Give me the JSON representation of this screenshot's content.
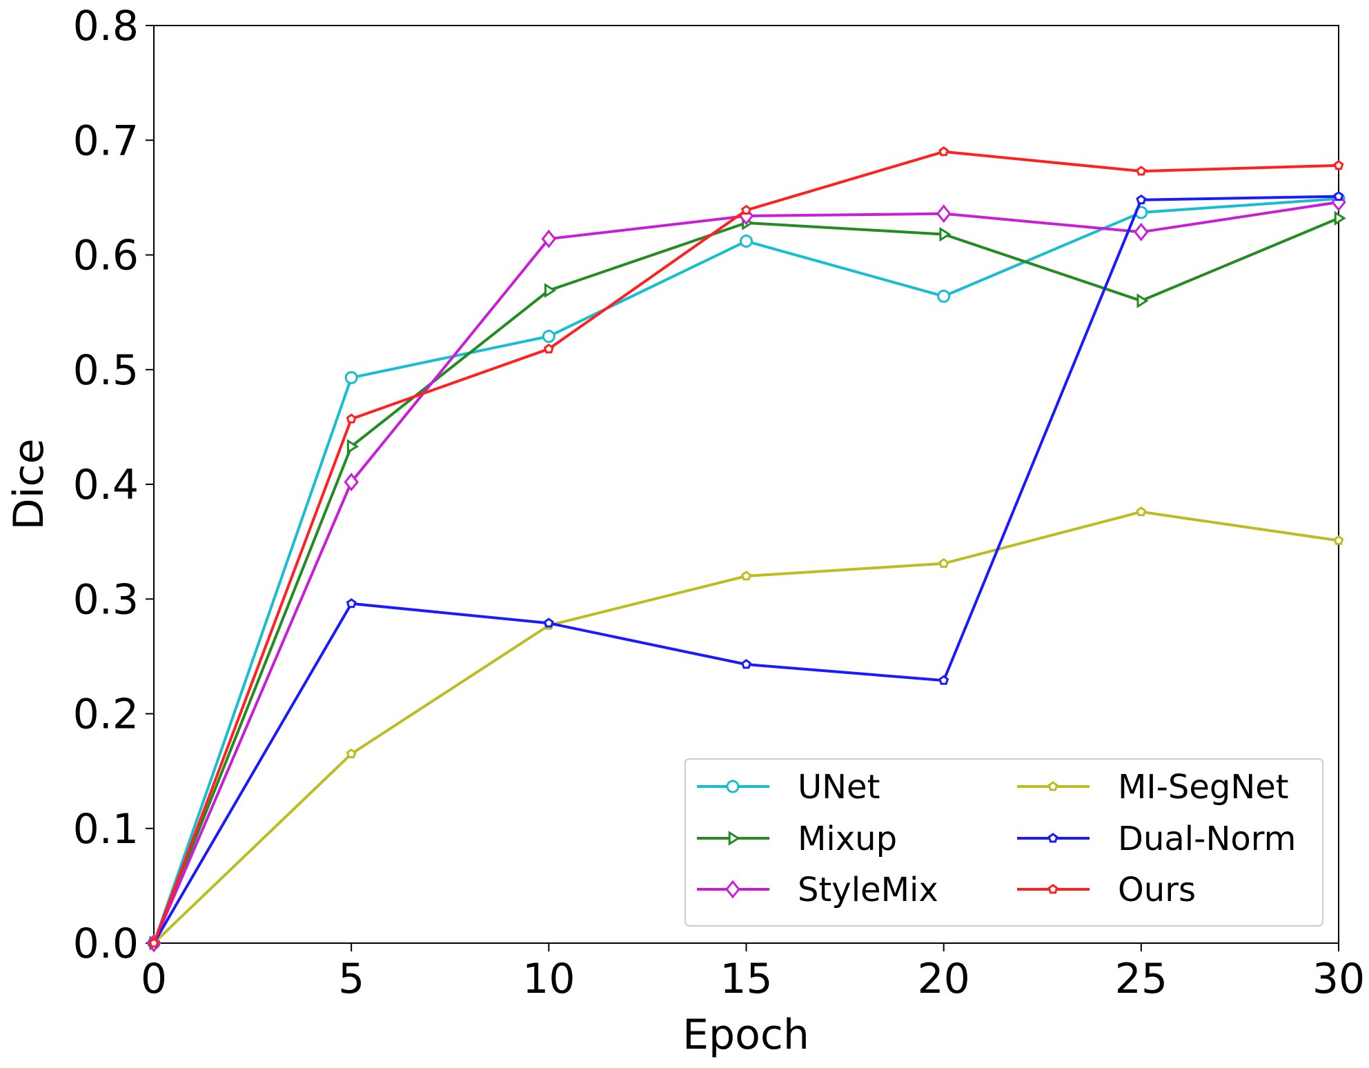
{
  "chart_data": {
    "type": "line",
    "title": "",
    "xlabel": "Epoch",
    "ylabel": "Dice",
    "xlim": [
      0,
      30
    ],
    "ylim": [
      0,
      0.8
    ],
    "x": [
      0,
      5,
      10,
      15,
      20,
      25,
      30
    ],
    "xticks": [
      "0",
      "5",
      "10",
      "15",
      "20",
      "25",
      "30"
    ],
    "yticks": [
      "0.0",
      "0.1",
      "0.2",
      "0.3",
      "0.4",
      "0.5",
      "0.6",
      "0.7",
      "0.8"
    ],
    "grid": false,
    "legend_position": "lower-right",
    "legend_columns": 2,
    "series": [
      {
        "name": "UNet",
        "color": "#17becf",
        "marker": "circle",
        "values": [
          0.0,
          0.493,
          0.529,
          0.612,
          0.564,
          0.637,
          0.649
        ]
      },
      {
        "name": "Mixup",
        "color": "#228b22",
        "marker": "triangle-right",
        "values": [
          0.0,
          0.433,
          0.569,
          0.628,
          0.618,
          0.56,
          0.632
        ]
      },
      {
        "name": "StyleMix",
        "color": "#c81ed8",
        "marker": "diamond",
        "values": [
          0.0,
          0.402,
          0.614,
          0.634,
          0.636,
          0.62,
          0.646
        ]
      },
      {
        "name": "MI-SegNet",
        "color": "#bcbd22",
        "marker": "pentagon",
        "values": [
          0.0,
          0.165,
          0.277,
          0.32,
          0.331,
          0.376,
          0.351
        ]
      },
      {
        "name": "Dual-Norm",
        "color": "#1a1aff",
        "marker": "pentagon",
        "values": [
          0.0,
          0.296,
          0.279,
          0.243,
          0.229,
          0.648,
          0.651
        ]
      },
      {
        "name": "Ours",
        "color": "#ff2020",
        "marker": "pentagon",
        "values": [
          0.0,
          0.457,
          0.518,
          0.639,
          0.69,
          0.673,
          0.678
        ]
      }
    ]
  }
}
